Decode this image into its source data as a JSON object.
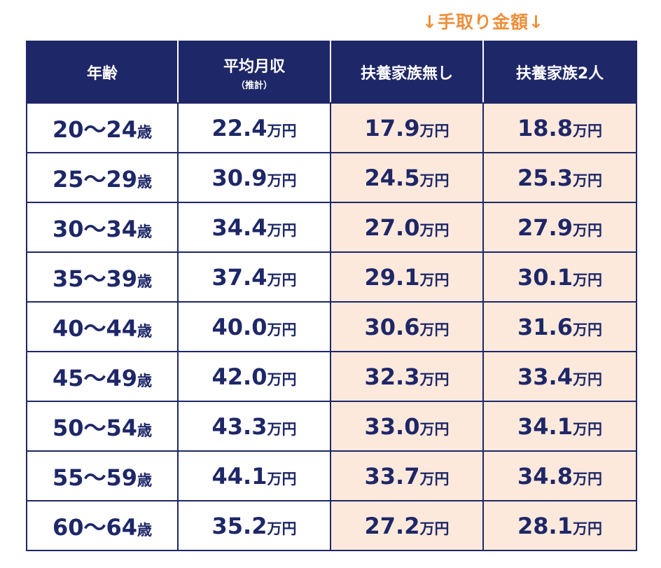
{
  "annotation": "↓手取り金額↓",
  "headers": {
    "age": "年齢",
    "avg_main": "平均月収",
    "avg_sub": "（推計）",
    "no_dep": "扶養家族無し",
    "two_dep": "扶養家族2人"
  },
  "units": {
    "age": "歳",
    "money": "万円"
  },
  "rows": [
    {
      "age": "20〜24",
      "avg": "22.4",
      "no_dep": "17.9",
      "two_dep": "18.8"
    },
    {
      "age": "25〜29",
      "avg": "30.9",
      "no_dep": "24.5",
      "two_dep": "25.3"
    },
    {
      "age": "30〜34",
      "avg": "34.4",
      "no_dep": "27.0",
      "two_dep": "27.9"
    },
    {
      "age": "35〜39",
      "avg": "37.4",
      "no_dep": "29.1",
      "two_dep": "30.1"
    },
    {
      "age": "40〜44",
      "avg": "40.0",
      "no_dep": "30.6",
      "two_dep": "31.6"
    },
    {
      "age": "45〜49",
      "avg": "42.0",
      "no_dep": "32.3",
      "two_dep": "33.4"
    },
    {
      "age": "50〜54",
      "avg": "43.3",
      "no_dep": "33.0",
      "two_dep": "34.1"
    },
    {
      "age": "55〜59",
      "avg": "44.1",
      "no_dep": "33.7",
      "two_dep": "34.8"
    },
    {
      "age": "60〜64",
      "avg": "35.2",
      "no_dep": "27.2",
      "two_dep": "28.1"
    }
  ],
  "colors": {
    "navy": "#1e2767",
    "takehome_bg": "#fde9dc",
    "annotation": "#ee8f3a"
  }
}
